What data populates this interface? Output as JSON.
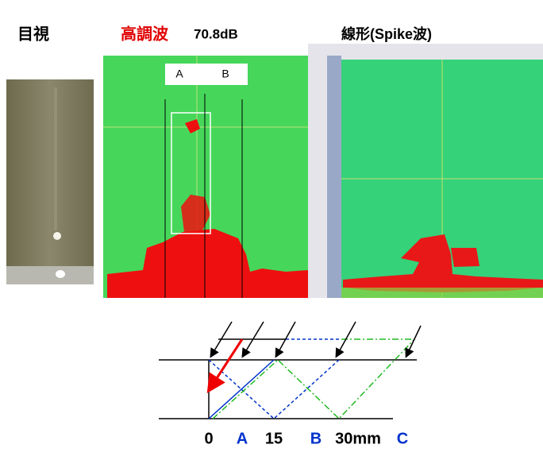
{
  "header": {
    "visual": "目視",
    "harmonic": "高調波",
    "harmonic_db": "70.8dB",
    "linear": "線形(Spike波)"
  },
  "image_labels": [
    "A",
    "B"
  ],
  "diagram_labels": [
    "0",
    "A",
    "15",
    "B",
    "30mm",
    "C"
  ]
}
